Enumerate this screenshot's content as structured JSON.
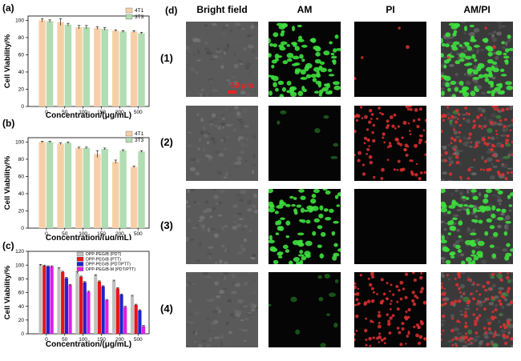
{
  "panels": {
    "a": "(a)",
    "b": "(b)",
    "c": "(c)",
    "d": "(d)"
  },
  "chart_data": [
    {
      "id": "a",
      "type": "bar",
      "categories": [
        "0",
        "50",
        "100",
        "150",
        "200",
        "500"
      ],
      "series": [
        {
          "name": "4T1",
          "values": [
            100,
            98,
            92,
            91,
            88,
            87
          ],
          "errors": [
            2,
            4,
            2,
            1.5,
            1,
            1
          ],
          "color": "#f7cfa7"
        },
        {
          "name": "3T3",
          "values": [
            99,
            95,
            92,
            90,
            87,
            85
          ],
          "errors": [
            1.5,
            1.5,
            2,
            1.5,
            1,
            1
          ],
          "color": "#b2dcb2"
        }
      ],
      "xlabel": "Concentration/(μg/mL)",
      "ylabel": "Cell Viability/%",
      "ylim": [
        0,
        105
      ],
      "yticks": [
        "0",
        "20",
        "40",
        "60",
        "80",
        "100"
      ],
      "legend": "top-right"
    },
    {
      "id": "b",
      "type": "bar",
      "categories": [
        "0",
        "50",
        "100",
        "150",
        "200",
        "500"
      ],
      "series": [
        {
          "name": "4T1",
          "values": [
            100,
            98,
            93,
            86,
            77,
            71
          ],
          "errors": [
            1,
            1,
            1,
            4,
            2,
            1
          ],
          "color": "#f7cfa7"
        },
        {
          "name": "3T3",
          "values": [
            100,
            99,
            93,
            92,
            90,
            89
          ],
          "errors": [
            1,
            1,
            1,
            1,
            1,
            1
          ],
          "color": "#b2dcb2"
        }
      ],
      "xlabel": "Concentration/(μg/mL)",
      "ylabel": "Cell Viability/%",
      "ylim": [
        0,
        105
      ],
      "yticks": [
        "0",
        "20",
        "40",
        "60",
        "80",
        "100"
      ],
      "legend": "top-right"
    },
    {
      "id": "c",
      "type": "bar",
      "categories": [
        "0",
        "50",
        "100",
        "150",
        "200",
        "500"
      ],
      "series": [
        {
          "name": "DPP-PEG/B (PDT)",
          "values": [
            100,
            95,
            89,
            85,
            77,
            55
          ],
          "errors": [
            1,
            1,
            1,
            1,
            1,
            1
          ],
          "color": "#c0c0c0"
        },
        {
          "name": "DPP-PEG/B (PTT)",
          "values": [
            99,
            90,
            83,
            76,
            66,
            42
          ],
          "errors": [
            1,
            1,
            1,
            1,
            1,
            1
          ],
          "color": "#e8141c"
        },
        {
          "name": "DPP-PEG/B (PDT/PTT)",
          "values": [
            98,
            81,
            75,
            69,
            57,
            34
          ],
          "errors": [
            1,
            1,
            1,
            1,
            1,
            1
          ],
          "color": "#2222cc"
        },
        {
          "name": "DPP-PEG/B-M (PDT/PTT)",
          "values": [
            98,
            71,
            61,
            49,
            39,
            11
          ],
          "errors": [
            1,
            1,
            1,
            1,
            1,
            1
          ],
          "color": "#e020e0"
        }
      ],
      "xlabel": "Concentration/(μg/mL)",
      "ylabel": "Cell Viability/%",
      "ylim": [
        0,
        120
      ],
      "yticks": [
        "0",
        "20",
        "40",
        "60",
        "80",
        "100",
        "120"
      ],
      "legend": "top-right"
    }
  ],
  "microscopy": {
    "columns": [
      "Bright field",
      "AM",
      "PI",
      "AM/PI"
    ],
    "rows": [
      "(1)",
      "(2)",
      "(3)",
      "(4)"
    ],
    "scale_bar": "50 μm",
    "colors": {
      "live": "#3ee03e",
      "dead": "#e03030",
      "scale": "#ee2222"
    },
    "green_density": [
      0.9,
      0.05,
      0.8,
      0.1
    ],
    "red_density": [
      0.03,
      0.7,
      0.0,
      0.8
    ]
  }
}
